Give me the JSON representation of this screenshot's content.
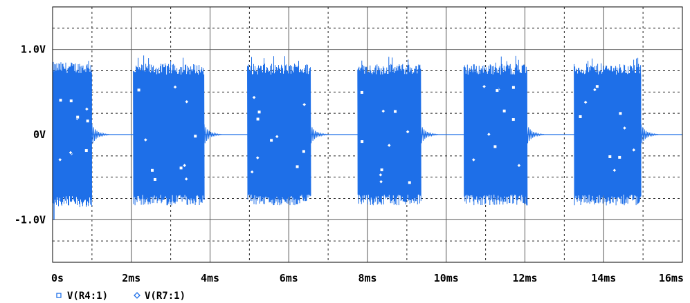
{
  "chart_data": {
    "type": "line",
    "title": "",
    "xlabel": "",
    "ylabel": "",
    "xlim_ms": [
      0,
      16
    ],
    "ylim_V": [
      -1.5,
      1.5
    ],
    "x_ticks": [
      {
        "value": 0,
        "label": "0s"
      },
      {
        "value": 2,
        "label": "2ms"
      },
      {
        "value": 4,
        "label": "4ms"
      },
      {
        "value": 6,
        "label": "6ms"
      },
      {
        "value": 8,
        "label": "8ms"
      },
      {
        "value": 10,
        "label": "10ms"
      },
      {
        "value": 12,
        "label": "12ms"
      },
      {
        "value": 14,
        "label": "14ms"
      },
      {
        "value": 16,
        "label": "16ms"
      }
    ],
    "y_ticks": [
      {
        "value": 1.0,
        "label": "1.0V"
      },
      {
        "value": 0.0,
        "label": "0V"
      },
      {
        "value": -1.0,
        "label": "-1.0V"
      }
    ],
    "grid": true,
    "trace_color": "#1e6fe8",
    "legend_position": "bottom-left",
    "series": [
      {
        "name": "V(R4:1)",
        "marker": "square",
        "bursts_ms": [
          [
            0.0,
            1.0
          ],
          [
            2.05,
            3.85
          ],
          [
            4.95,
            6.55
          ],
          [
            7.75,
            9.35
          ],
          [
            10.45,
            12.05
          ],
          [
            13.25,
            14.95
          ]
        ],
        "envelope_V": [
          0.82,
          0.8,
          0.8,
          0.8,
          0.8,
          0.8
        ],
        "peak_V": 1.0
      },
      {
        "name": "V(R7:1)",
        "marker": "diamond",
        "bursts_ms": [
          [
            0.0,
            1.0
          ],
          [
            2.05,
            3.85
          ],
          [
            4.95,
            6.55
          ],
          [
            7.75,
            9.35
          ],
          [
            10.45,
            12.05
          ],
          [
            13.25,
            14.95
          ]
        ],
        "envelope_V": [
          0.82,
          0.8,
          0.8,
          0.8,
          0.8,
          0.8
        ],
        "peak_V": 1.0
      }
    ]
  }
}
